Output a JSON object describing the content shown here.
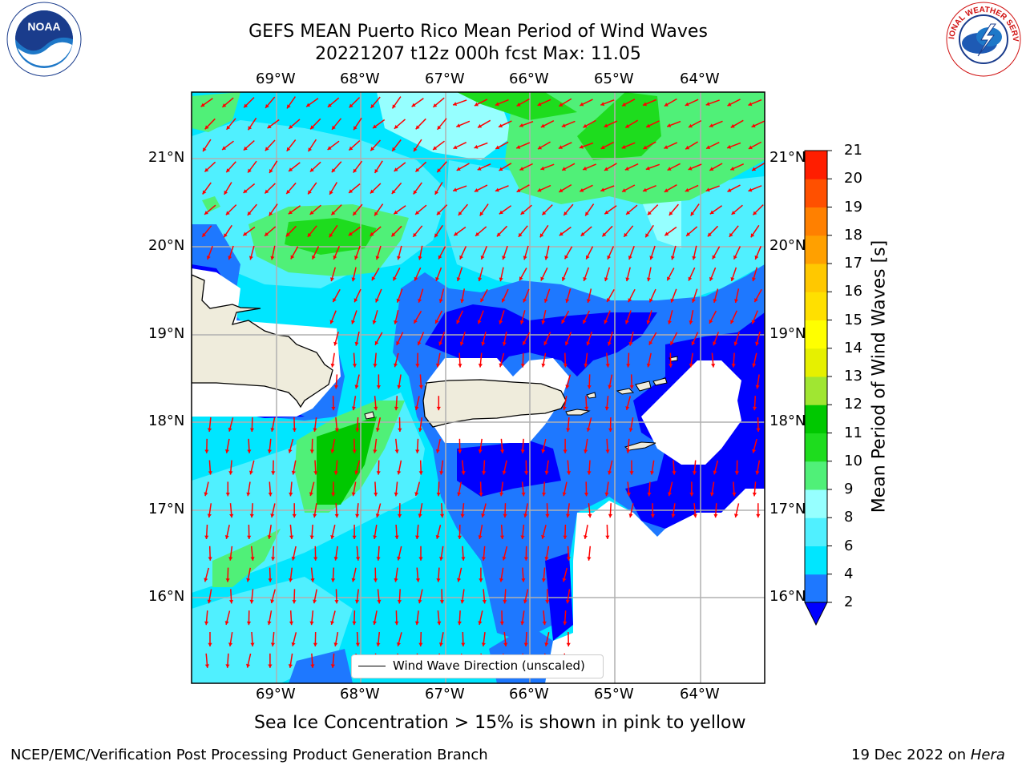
{
  "title": {
    "line1": "GEFS MEAN Puerto Rico Mean Period of Wind Waves",
    "line2": "20221207 t12z 000h fcst   Max: 11.05"
  },
  "map": {
    "lon_ticks": [
      "69°W",
      "68°W",
      "67°W",
      "66°W",
      "65°W",
      "64°W"
    ],
    "lat_ticks": [
      "21°N",
      "20°N",
      "19°N",
      "18°N",
      "17°N",
      "16°N"
    ],
    "extent": {
      "lon": [
        -70,
        -63.25
      ],
      "lat": [
        15.0,
        21.75
      ]
    },
    "arrow_color": "#ff0000",
    "land_color": "#efecdc",
    "grid_color": "#b0b0b0"
  },
  "legend": {
    "label": "Wind Wave Direction (unscaled)"
  },
  "colorbar": {
    "label": "Mean Period of Wind Waves [s]",
    "ticks": [
      "21",
      "20",
      "19",
      "18",
      "17",
      "16",
      "15",
      "14",
      "13",
      "12",
      "11",
      "10",
      "9",
      "8",
      "6",
      "4",
      "2"
    ],
    "colors": [
      "#0000ff",
      "#1e78ff",
      "#00e6ff",
      "#50f0ff",
      "#96ffff",
      "#50f078",
      "#1edc1e",
      "#00c800",
      "#a0e632",
      "#e6f000",
      "#ffff00",
      "#ffe000",
      "#ffc800",
      "#ffa000",
      "#ff8000",
      "#ff5000",
      "#ff1e00",
      "#ff0000"
    ]
  },
  "caption": "Sea Ice Concentration > 15% is shown in pink to yellow",
  "footer": {
    "left": "NCEP/EMC/Verification Post Processing Product Generation Branch",
    "right_prefix": "19 Dec 2022 on ",
    "right_host": "Hera"
  },
  "logos": {
    "noaa_text": "NOAA",
    "nws_text": "NATIONAL WEATHER SERVICE"
  }
}
